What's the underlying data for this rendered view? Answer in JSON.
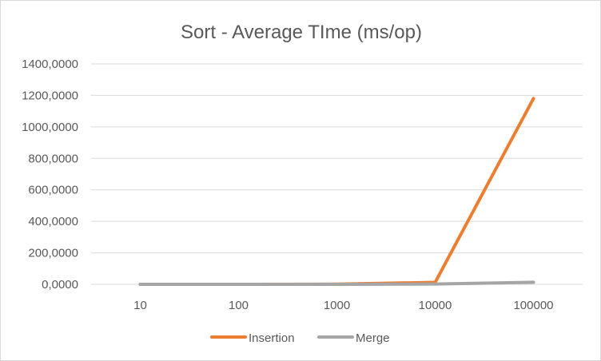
{
  "chart_data": {
    "type": "line",
    "title": "Sort - Average TIme (ms/op)",
    "xlabel": "",
    "ylabel": "",
    "categories": [
      "10",
      "100",
      "1000",
      "10000",
      "100000"
    ],
    "series": [
      {
        "name": "Insertion",
        "color": "#ed7d31",
        "values": [
          0.0015,
          0.06,
          1.3,
          12.5,
          1180
        ]
      },
      {
        "name": "Merge",
        "color": "#a5a5a5",
        "values": [
          0.0012,
          0.015,
          0.17,
          1.8,
          13
        ]
      }
    ],
    "ylim": [
      0,
      1400
    ],
    "yticks": [
      0,
      200,
      400,
      600,
      800,
      1000,
      1200,
      1400
    ],
    "ytick_labels": [
      "0,0000",
      "200,0000",
      "400,0000",
      "600,0000",
      "800,0000",
      "1000,0000",
      "1200,0000",
      "1400,0000"
    ],
    "grid": true,
    "legend_position": "bottom"
  }
}
